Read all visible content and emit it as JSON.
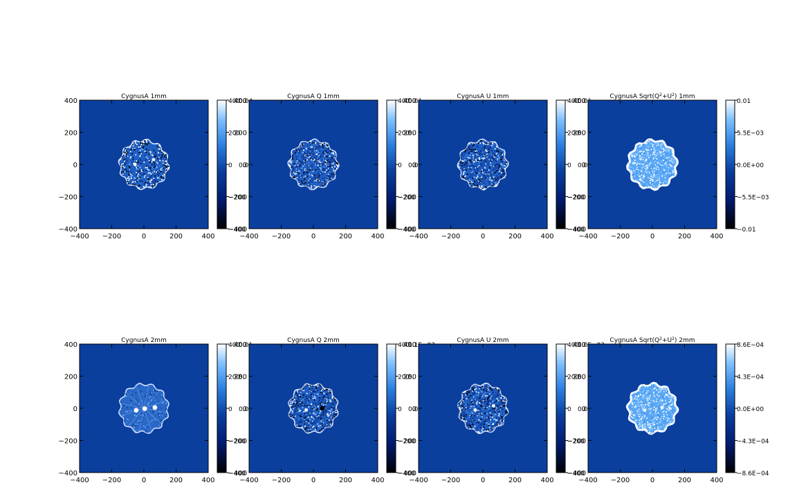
{
  "figure": {
    "colors": {
      "background": "#ffffff",
      "map_background": "#0a3f9e",
      "colormap": [
        "#000000",
        "#001a6e",
        "#0a3f9e",
        "#2a7fe0",
        "#7fc0ff",
        "#ffffff"
      ]
    }
  },
  "chart_data": [
    {
      "type": "heatmap",
      "title": "CygnusA 1mm",
      "title_rich": [
        {
          "t": "CygnusA 1mm"
        }
      ],
      "xlim": [
        -400,
        400
      ],
      "ylim": [
        -400,
        400
      ],
      "x_ticks": [
        "−400",
        "−200",
        "0",
        "200",
        "400"
      ],
      "y_ticks": [
        "400",
        "200",
        "0",
        "−200",
        "−400"
      ],
      "colorbar_labels": [
        "400",
        "200",
        "0",
        "−200",
        "−400"
      ],
      "colorbar_overlap": [
        "0.04",
        "",
        "0.0",
        "",
        ""
      ],
      "style": "intensity",
      "sources": [
        [
          -55,
          0
        ],
        [
          60,
          30
        ]
      ],
      "dark_source": null
    },
    {
      "type": "heatmap",
      "title": "CygnusA Q 1mm",
      "title_rich": [
        {
          "t": "CygnusA Q 1mm"
        }
      ],
      "xlim": [
        -400,
        400
      ],
      "ylim": [
        -400,
        400
      ],
      "x_ticks": [
        "−400",
        "−200",
        "0",
        "200",
        "400"
      ],
      "y_ticks": [
        "400",
        "200",
        "0",
        "−200",
        "−400"
      ],
      "colorbar_labels": [
        "400",
        "200",
        "0",
        "−200",
        "−400"
      ],
      "colorbar_overlap": [
        "0.01",
        "5.",
        "0.0",
        "",
        ""
      ],
      "style": "noise",
      "sources": [],
      "dark_source": null
    },
    {
      "type": "heatmap",
      "title": "CygnusA U 1mm",
      "title_rich": [
        {
          "t": "CygnusA U 1mm"
        }
      ],
      "xlim": [
        -400,
        400
      ],
      "ylim": [
        -400,
        400
      ],
      "x_ticks": [
        "−400",
        "−200",
        "0",
        "200",
        "400"
      ],
      "y_ticks": [
        "400",
        "200",
        "0",
        "−200",
        "−400"
      ],
      "colorbar_labels": [
        "400",
        "200",
        "0",
        "−200",
        "−400"
      ],
      "colorbar_overlap": [
        "0.01",
        "5.",
        "0.0",
        "",
        ""
      ],
      "style": "noise",
      "sources": [],
      "dark_source": null
    },
    {
      "type": "heatmap",
      "title": "CygnusA Sqrt(Q²+U²) 1mm",
      "title_rich": [
        {
          "t": "CygnusA Sqrt(Q"
        },
        {
          "t": "2",
          "sup": true
        },
        {
          "t": "+U"
        },
        {
          "t": "2",
          "sup": true
        },
        {
          "t": ") 1mm"
        }
      ],
      "xlim": [
        -400,
        400
      ],
      "ylim": [
        -400,
        400
      ],
      "x_ticks": [
        "−400",
        "−200",
        "0",
        "200",
        "400"
      ],
      "y_ticks": [
        "400",
        "200",
        "0",
        "−200",
        "−400"
      ],
      "colorbar_labels": [
        "0.01",
        "5.5E−03",
        "0.0E+00",
        "−5.5E−03",
        "−0.01"
      ],
      "colorbar_overlap": [
        "",
        "",
        "",
        "",
        ""
      ],
      "style": "polint",
      "sources": [],
      "dark_source": null
    },
    {
      "type": "heatmap",
      "title": "CygnusA 2mm",
      "title_rich": [
        {
          "t": "CygnusA 2mm"
        }
      ],
      "xlim": [
        -400,
        400
      ],
      "ylim": [
        -400,
        400
      ],
      "x_ticks": [
        "−400",
        "−200",
        "0",
        "200",
        "400"
      ],
      "y_ticks": [
        "400",
        "200",
        "0",
        "−200",
        "−400"
      ],
      "colorbar_labels": [
        "400",
        "200",
        "0",
        "−200",
        "−400"
      ],
      "colorbar_overlap": [
        "0.01",
        "5.",
        "0.0",
        "",
        ""
      ],
      "style": "intensity2",
      "sources": [
        [
          -48,
          -12
        ],
        [
          68,
          5
        ],
        [
          5,
          -2
        ]
      ],
      "dark_source": null
    },
    {
      "type": "heatmap",
      "title": "CygnusA Q 2mm",
      "title_rich": [
        {
          "t": "CygnusA Q 2mm"
        }
      ],
      "xlim": [
        -400,
        400
      ],
      "ylim": [
        -400,
        400
      ],
      "x_ticks": [
        "−400",
        "−200",
        "0",
        "200",
        "400"
      ],
      "y_ticks": [
        "400",
        "200",
        "0",
        "−200",
        "−400"
      ],
      "colorbar_labels": [
        "400",
        "200",
        "0",
        "−200",
        "−400"
      ],
      "colorbar_overlap": [
        "1.1E−03",
        "5.",
        "0.0",
        "",
        ""
      ],
      "style": "noise",
      "sources": [
        [
          -45,
          -10
        ]
      ],
      "dark_source": [
        55,
        0
      ]
    },
    {
      "type": "heatmap",
      "title": "CygnusA U 2mm",
      "title_rich": [
        {
          "t": "CygnusA U 2mm"
        }
      ],
      "xlim": [
        -400,
        400
      ],
      "ylim": [
        -400,
        400
      ],
      "x_ticks": [
        "−400",
        "−200",
        "0",
        "200",
        "400"
      ],
      "y_ticks": [
        "400",
        "200",
        "0",
        "−200",
        "−400"
      ],
      "colorbar_labels": [
        "400",
        "200",
        "0",
        "−200",
        "−400"
      ],
      "colorbar_overlap": [
        "1.0E−03",
        "5.",
        "0.0",
        "",
        ""
      ],
      "style": "noise",
      "sources": [
        [
          -48,
          -10
        ],
        [
          65,
          15
        ]
      ],
      "dark_source": null
    },
    {
      "type": "heatmap",
      "title": "CygnusA Sqrt(Q²+U²) 2mm",
      "title_rich": [
        {
          "t": "CygnusA Sqrt(Q"
        },
        {
          "t": "2",
          "sup": true
        },
        {
          "t": "+U"
        },
        {
          "t": "2",
          "sup": true
        },
        {
          "t": ") 2mm"
        }
      ],
      "xlim": [
        -400,
        400
      ],
      "ylim": [
        -400,
        400
      ],
      "x_ticks": [
        "−400",
        "−200",
        "0",
        "200",
        "400"
      ],
      "y_ticks": [
        "400",
        "200",
        "0",
        "−200",
        "−400"
      ],
      "colorbar_labels": [
        "8.6E−04",
        "4.3E−04",
        "0.0E+00",
        "−4.3E−04",
        "−8.6E−04"
      ],
      "colorbar_overlap": [
        "",
        "",
        "",
        "",
        ""
      ],
      "style": "polint",
      "sources": [
        [
          -48,
          -12
        ],
        [
          60,
          5
        ]
      ],
      "dark_source": null
    }
  ]
}
